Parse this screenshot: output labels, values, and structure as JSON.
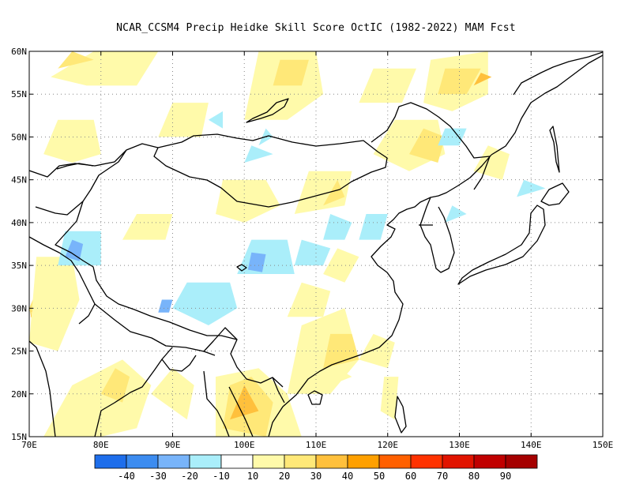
{
  "title": "NCAR_CCSM4 Precip Heidke Skill Score OctIC (1982-2022) MAM Fcst",
  "map": {
    "lon_range": [
      70,
      150
    ],
    "lat_range": [
      15,
      60
    ],
    "lon_ticks": [
      {
        "value": 70,
        "label": "70E"
      },
      {
        "value": 80,
        "label": "80E"
      },
      {
        "value": 90,
        "label": "90E"
      },
      {
        "value": 100,
        "label": "100E"
      },
      {
        "value": 110,
        "label": "110E"
      },
      {
        "value": 120,
        "label": "120E"
      },
      {
        "value": 130,
        "label": "130E"
      },
      {
        "value": 140,
        "label": "140E"
      },
      {
        "value": 150,
        "label": "150E"
      }
    ],
    "lat_ticks": [
      {
        "value": 15,
        "label": "15N"
      },
      {
        "value": 20,
        "label": "20N"
      },
      {
        "value": 25,
        "label": "25N"
      },
      {
        "value": 30,
        "label": "30N"
      },
      {
        "value": 35,
        "label": "35N"
      },
      {
        "value": 40,
        "label": "40N"
      },
      {
        "value": 45,
        "label": "45N"
      },
      {
        "value": 50,
        "label": "50N"
      },
      {
        "value": 55,
        "label": "55N"
      },
      {
        "value": 60,
        "label": "60N"
      }
    ],
    "grid": "dotted",
    "regions": [
      {
        "level": 20,
        "pts": [
          [
            70,
            30
          ],
          [
            72,
            34
          ],
          [
            74,
            33
          ],
          [
            73,
            28
          ],
          [
            71,
            26
          ]
        ]
      },
      {
        "level": 30,
        "pts": [
          [
            70.2,
            29
          ],
          [
            71,
            32
          ],
          [
            72.5,
            31
          ],
          [
            71.5,
            28.5
          ]
        ]
      },
      {
        "level": 40,
        "pts": [
          [
            70.3,
            29.6
          ],
          [
            70.8,
            31.4
          ],
          [
            71.6,
            30.6
          ],
          [
            71,
            29.4
          ]
        ]
      },
      {
        "level": 10,
        "pts": [
          [
            70,
            26
          ],
          [
            71,
            36
          ],
          [
            76,
            36
          ],
          [
            77,
            31
          ],
          [
            74,
            25
          ]
        ]
      },
      {
        "level": 10,
        "pts": [
          [
            72,
            15
          ],
          [
            76,
            21
          ],
          [
            83,
            24
          ],
          [
            87,
            21
          ],
          [
            85,
            16
          ],
          [
            80,
            15
          ]
        ]
      },
      {
        "level": 20,
        "pts": [
          [
            80,
            20
          ],
          [
            82,
            23
          ],
          [
            84,
            22
          ],
          [
            83,
            19
          ]
        ]
      },
      {
        "level": 10,
        "pts": [
          [
            87,
            20
          ],
          [
            90,
            23
          ],
          [
            93,
            21
          ],
          [
            92,
            17
          ]
        ]
      },
      {
        "level": 10,
        "pts": [
          [
            96,
            15
          ],
          [
            96,
            22
          ],
          [
            102,
            23
          ],
          [
            106,
            20
          ],
          [
            108,
            15
          ]
        ]
      },
      {
        "level": 20,
        "pts": [
          [
            97,
            16
          ],
          [
            98,
            21
          ],
          [
            101,
            22
          ],
          [
            104,
            19
          ],
          [
            103,
            15
          ]
        ]
      },
      {
        "level": 30,
        "pts": [
          [
            98,
            17
          ],
          [
            100,
            21
          ],
          [
            102,
            18
          ]
        ]
      },
      {
        "level": 10,
        "pts": [
          [
            106,
            20
          ],
          [
            108,
            28
          ],
          [
            114,
            30
          ],
          [
            116,
            24
          ],
          [
            112,
            20
          ]
        ]
      },
      {
        "level": 20,
        "pts": [
          [
            111,
            23
          ],
          [
            112,
            27
          ],
          [
            115,
            27
          ],
          [
            116,
            24
          ]
        ]
      },
      {
        "level": 10,
        "pts": [
          [
            116,
            24
          ],
          [
            118,
            27
          ],
          [
            121,
            26
          ],
          [
            120,
            23
          ]
        ]
      },
      {
        "level": 10,
        "pts": [
          [
            106,
            29
          ],
          [
            108,
            33
          ],
          [
            112,
            32
          ],
          [
            111,
            29
          ]
        ]
      },
      {
        "level": 10,
        "pts": [
          [
            111,
            34
          ],
          [
            113,
            37
          ],
          [
            116,
            36
          ],
          [
            114,
            33
          ]
        ]
      },
      {
        "level": 10,
        "pts": [
          [
            96,
            41
          ],
          [
            97,
            45
          ],
          [
            103,
            45
          ],
          [
            105,
            42
          ],
          [
            100,
            40
          ]
        ]
      },
      {
        "level": 10,
        "pts": [
          [
            107,
            41
          ],
          [
            109,
            46
          ],
          [
            115,
            46
          ],
          [
            114,
            42
          ]
        ]
      },
      {
        "level": 20,
        "pts": [
          [
            111,
            42
          ],
          [
            113,
            45
          ],
          [
            114,
            43
          ]
        ]
      },
      {
        "level": 10,
        "pts": [
          [
            118,
            48
          ],
          [
            121,
            52
          ],
          [
            127,
            52
          ],
          [
            128,
            48
          ],
          [
            123,
            46
          ]
        ]
      },
      {
        "level": 20,
        "pts": [
          [
            123,
            48
          ],
          [
            125,
            51
          ],
          [
            128,
            50
          ],
          [
            127,
            47
          ]
        ]
      },
      {
        "level": 10,
        "pts": [
          [
            72,
            48
          ],
          [
            74,
            52
          ],
          [
            79,
            52
          ],
          [
            80,
            48
          ],
          [
            76,
            47
          ]
        ]
      },
      {
        "level": 10,
        "pts": [
          [
            73,
            57
          ],
          [
            79,
            60
          ],
          [
            88,
            60
          ],
          [
            85,
            56
          ],
          [
            78,
            56
          ]
        ]
      },
      {
        "level": 20,
        "pts": [
          [
            74,
            58
          ],
          [
            76,
            60
          ],
          [
            79,
            59
          ]
        ]
      },
      {
        "level": 10,
        "pts": [
          [
            88,
            50
          ],
          [
            90,
            54
          ],
          [
            95,
            54
          ],
          [
            94,
            50
          ]
        ]
      },
      {
        "level": 10,
        "pts": [
          [
            100,
            52
          ],
          [
            102,
            60
          ],
          [
            110,
            60
          ],
          [
            111,
            55
          ],
          [
            106,
            52
          ]
        ]
      },
      {
        "level": 20,
        "pts": [
          [
            104,
            56
          ],
          [
            105,
            59
          ],
          [
            109,
            59
          ],
          [
            108,
            56
          ]
        ]
      },
      {
        "level": 10,
        "pts": [
          [
            116,
            54
          ],
          [
            118,
            58
          ],
          [
            124,
            58
          ],
          [
            122,
            54
          ]
        ]
      },
      {
        "level": 10,
        "pts": [
          [
            125,
            54
          ],
          [
            126,
            59
          ],
          [
            134,
            60
          ],
          [
            134,
            55
          ],
          [
            129,
            53
          ]
        ]
      },
      {
        "level": 20,
        "pts": [
          [
            127,
            55
          ],
          [
            128,
            58
          ],
          [
            133,
            58
          ],
          [
            131,
            55
          ]
        ]
      },
      {
        "level": 30,
        "pts": [
          [
            132,
            56
          ],
          [
            133,
            57.5
          ],
          [
            134.5,
            57
          ]
        ]
      },
      {
        "level": 10,
        "pts": [
          [
            83,
            38
          ],
          [
            85,
            41
          ],
          [
            90,
            41
          ],
          [
            89,
            38
          ]
        ]
      },
      {
        "level": 10,
        "pts": [
          [
            112,
            21
          ],
          [
            113,
            23
          ],
          [
            115,
            22
          ]
        ]
      },
      {
        "level": 10,
        "pts": [
          [
            132,
            46
          ],
          [
            134,
            49
          ],
          [
            137,
            48
          ],
          [
            136,
            45
          ]
        ]
      },
      {
        "level": 10,
        "pts": [
          [
            119,
            18
          ],
          [
            119.5,
            22
          ],
          [
            121.5,
            22
          ],
          [
            121,
            17
          ]
        ]
      },
      {
        "level": -10,
        "pts": [
          [
            74,
            35
          ],
          [
            75,
            39
          ],
          [
            80,
            39
          ],
          [
            80,
            35
          ]
        ]
      },
      {
        "level": -20,
        "pts": [
          [
            75,
            36
          ],
          [
            76,
            38
          ],
          [
            77.5,
            37.5
          ],
          [
            77,
            35.5
          ]
        ]
      },
      {
        "level": -10,
        "pts": [
          [
            90,
            30
          ],
          [
            92,
            33
          ],
          [
            98,
            33
          ],
          [
            99,
            30
          ],
          [
            95,
            28
          ]
        ]
      },
      {
        "level": -20,
        "pts": [
          [
            88,
            29.5
          ],
          [
            88.5,
            31
          ],
          [
            90,
            31
          ],
          [
            89.5,
            29.5
          ]
        ]
      },
      {
        "level": -10,
        "pts": [
          [
            99,
            34
          ],
          [
            101,
            38
          ],
          [
            106,
            38
          ],
          [
            107,
            34
          ]
        ]
      },
      {
        "level": -20,
        "pts": [
          [
            100.5,
            34.5
          ],
          [
            101,
            36.5
          ],
          [
            103,
            36.3
          ],
          [
            102.5,
            34.2
          ]
        ]
      },
      {
        "level": -10,
        "pts": [
          [
            107,
            35
          ],
          [
            108,
            38
          ],
          [
            112,
            37
          ],
          [
            111,
            35
          ]
        ]
      },
      {
        "level": -10,
        "pts": [
          [
            111,
            38
          ],
          [
            112,
            41
          ],
          [
            115,
            40
          ],
          [
            114,
            38
          ]
        ]
      },
      {
        "level": -10,
        "pts": [
          [
            116,
            38
          ],
          [
            117,
            41
          ],
          [
            120,
            41
          ],
          [
            119,
            38
          ]
        ]
      },
      {
        "level": -10,
        "pts": [
          [
            100,
            47
          ],
          [
            101,
            49
          ],
          [
            104,
            48
          ]
        ]
      },
      {
        "level": -10,
        "pts": [
          [
            127,
            49
          ],
          [
            128,
            51
          ],
          [
            131,
            51
          ],
          [
            130,
            49
          ]
        ]
      },
      {
        "level": -10,
        "pts": [
          [
            95,
            52
          ],
          [
            97,
            53
          ],
          [
            97,
            51
          ]
        ]
      },
      {
        "level": -10,
        "pts": [
          [
            138,
            43
          ],
          [
            139,
            45
          ],
          [
            142,
            44
          ]
        ]
      },
      {
        "level": -10,
        "pts": [
          [
            128,
            40
          ],
          [
            129,
            42
          ],
          [
            131,
            41
          ]
        ]
      },
      {
        "level": -10,
        "pts": [
          [
            102,
            49
          ],
          [
            103,
            51
          ],
          [
            104,
            50
          ]
        ]
      }
    ]
  },
  "colorbar": {
    "levels": [
      -50,
      -40,
      -30,
      -20,
      -10,
      10,
      20,
      30,
      40,
      50,
      60,
      70,
      80,
      90,
      100
    ],
    "labels": [
      "-40",
      "-30",
      "-20",
      "-10",
      "10",
      "20",
      "30",
      "40",
      "50",
      "60",
      "70",
      "80",
      "90"
    ],
    "colors": [
      "#1e6eeb",
      "#3c8cf0",
      "#78b4fa",
      "#aaeefa",
      "#ffffff",
      "#fffaaa",
      "#ffe878",
      "#ffc03c",
      "#ffa000",
      "#ff6000",
      "#ff3200",
      "#e11400",
      "#c00000",
      "#a50000"
    ]
  },
  "palette": {
    "-40": "#1e6eeb",
    "-30": "#3c8cf0",
    "-20": "#78b4fa",
    "-10": "#aaeefa",
    "10": "#fffaaa",
    "20": "#ffe878",
    "30": "#ffc03c",
    "40": "#ffa000"
  }
}
